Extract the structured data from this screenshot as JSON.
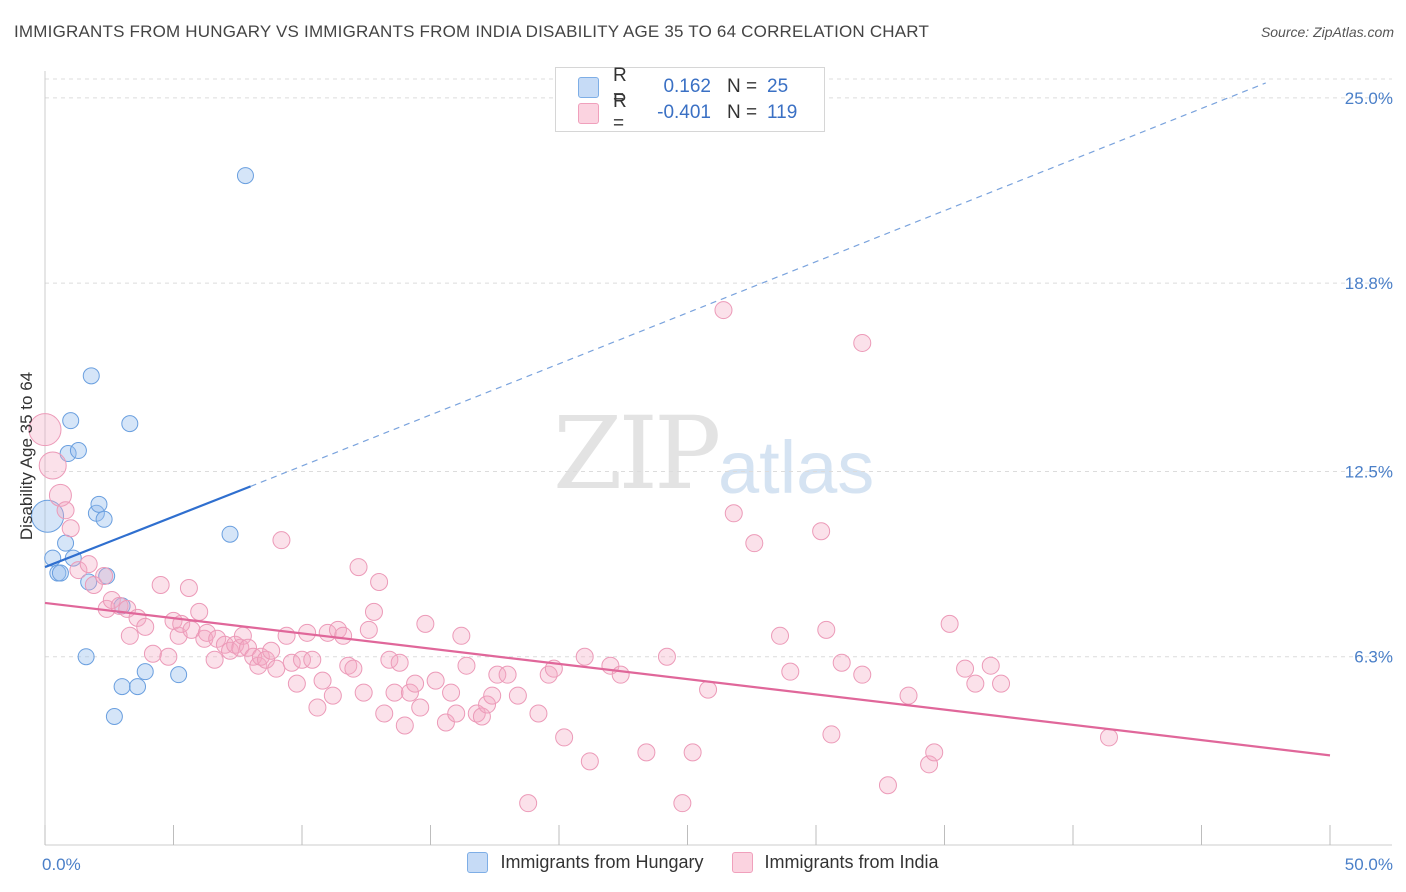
{
  "title": "IMMIGRANTS FROM HUNGARY VS IMMIGRANTS FROM INDIA DISABILITY AGE 35 TO 64 CORRELATION CHART",
  "source": "Source: ZipAtlas.com",
  "watermark": {
    "zip": "ZIP",
    "atlas": "atlas"
  },
  "legend": {
    "rows": [
      {
        "r_label": "R =",
        "r_value": "0.162",
        "n_label": "N =",
        "n_value": "25"
      },
      {
        "r_label": "R =",
        "r_value": "-0.401",
        "n_label": "N =",
        "n_value": "119"
      }
    ]
  },
  "bottom_legend": [
    "Immigrants from Hungary",
    "Immigrants from India"
  ],
  "chart_data": {
    "type": "scatter",
    "title": "IMMIGRANTS FROM HUNGARY VS IMMIGRANTS FROM INDIA DISABILITY AGE 35 TO 64 CORRELATION CHART",
    "xlabel": "",
    "ylabel": "Disability Age 35 to 64",
    "xlim": [
      0,
      50
    ],
    "ylim": [
      0,
      25.9
    ],
    "x_tick_labels": [
      "0.0%",
      "50.0%"
    ],
    "y_ticks": [
      6.3,
      12.5,
      18.8,
      25.0
    ],
    "y_tick_labels": [
      "6.3%",
      "12.5%",
      "18.8%",
      "25.0%"
    ],
    "colors": {
      "hungary": "#7eaee6",
      "india": "#f0a0bc",
      "hungary_line": "#2f6fcf",
      "india_line": "#e0679a"
    },
    "series": [
      {
        "name": "Immigrants from Hungary",
        "points": [
          [
            0.1,
            11.0
          ],
          [
            0.3,
            9.6
          ],
          [
            0.5,
            9.1
          ],
          [
            0.6,
            9.1
          ],
          [
            0.8,
            10.1
          ],
          [
            0.9,
            13.1
          ],
          [
            1.0,
            14.2
          ],
          [
            1.1,
            9.6
          ],
          [
            1.3,
            13.2
          ],
          [
            1.6,
            6.3
          ],
          [
            1.7,
            8.8
          ],
          [
            1.8,
            15.7
          ],
          [
            2.0,
            11.1
          ],
          [
            2.1,
            11.4
          ],
          [
            2.3,
            10.9
          ],
          [
            2.4,
            9.0
          ],
          [
            2.7,
            4.3
          ],
          [
            3.0,
            5.3
          ],
          [
            3.3,
            14.1
          ],
          [
            3.6,
            5.3
          ],
          [
            3.9,
            5.8
          ],
          [
            5.2,
            5.7
          ],
          [
            7.2,
            10.4
          ],
          [
            7.8,
            22.4
          ],
          [
            3.0,
            8.0
          ]
        ],
        "trendline": {
          "x": [
            0,
            8
          ],
          "y": [
            9.3,
            12.0
          ],
          "dashed_to": [
            47.5,
            25.5
          ]
        }
      },
      {
        "name": "Immigrants from India",
        "points": [
          [
            0.0,
            13.9
          ],
          [
            0.3,
            12.7
          ],
          [
            0.6,
            11.7
          ],
          [
            0.8,
            11.2
          ],
          [
            1.0,
            10.6
          ],
          [
            1.3,
            9.2
          ],
          [
            1.7,
            9.4
          ],
          [
            1.9,
            8.7
          ],
          [
            2.3,
            9.0
          ],
          [
            2.4,
            7.9
          ],
          [
            2.6,
            8.2
          ],
          [
            2.9,
            8.0
          ],
          [
            3.2,
            7.9
          ],
          [
            3.3,
            7.0
          ],
          [
            3.6,
            7.6
          ],
          [
            3.9,
            7.3
          ],
          [
            4.2,
            6.4
          ],
          [
            4.5,
            8.7
          ],
          [
            4.8,
            6.3
          ],
          [
            5.0,
            7.5
          ],
          [
            5.2,
            7.0
          ],
          [
            5.3,
            7.4
          ],
          [
            5.6,
            8.6
          ],
          [
            5.7,
            7.2
          ],
          [
            6.0,
            7.8
          ],
          [
            6.2,
            6.9
          ],
          [
            6.3,
            7.1
          ],
          [
            6.6,
            6.2
          ],
          [
            6.7,
            6.9
          ],
          [
            7.0,
            6.7
          ],
          [
            7.2,
            6.5
          ],
          [
            7.4,
            6.7
          ],
          [
            7.6,
            6.6
          ],
          [
            7.7,
            7.0
          ],
          [
            7.9,
            6.6
          ],
          [
            8.1,
            6.3
          ],
          [
            8.3,
            6.0
          ],
          [
            8.4,
            6.3
          ],
          [
            8.6,
            6.2
          ],
          [
            8.8,
            6.5
          ],
          [
            9.0,
            5.9
          ],
          [
            9.2,
            10.2
          ],
          [
            9.4,
            7.0
          ],
          [
            9.6,
            6.1
          ],
          [
            9.8,
            5.4
          ],
          [
            10.0,
            6.2
          ],
          [
            10.2,
            7.1
          ],
          [
            10.4,
            6.2
          ],
          [
            10.6,
            4.6
          ],
          [
            10.8,
            5.5
          ],
          [
            11.0,
            7.1
          ],
          [
            11.2,
            5.0
          ],
          [
            11.4,
            7.2
          ],
          [
            11.6,
            7.0
          ],
          [
            11.8,
            6.0
          ],
          [
            12.0,
            5.9
          ],
          [
            12.2,
            9.3
          ],
          [
            12.4,
            5.1
          ],
          [
            12.6,
            7.2
          ],
          [
            12.8,
            7.8
          ],
          [
            13.0,
            8.8
          ],
          [
            13.2,
            4.4
          ],
          [
            13.4,
            6.2
          ],
          [
            13.6,
            5.1
          ],
          [
            13.8,
            6.1
          ],
          [
            14.0,
            4.0
          ],
          [
            14.2,
            5.1
          ],
          [
            14.4,
            5.4
          ],
          [
            14.6,
            4.6
          ],
          [
            14.8,
            7.4
          ],
          [
            15.2,
            5.5
          ],
          [
            15.6,
            4.1
          ],
          [
            15.8,
            5.1
          ],
          [
            16.0,
            4.4
          ],
          [
            16.2,
            7.0
          ],
          [
            16.4,
            6.0
          ],
          [
            16.8,
            4.4
          ],
          [
            17.0,
            4.3
          ],
          [
            17.2,
            4.7
          ],
          [
            17.4,
            5.0
          ],
          [
            17.6,
            5.7
          ],
          [
            18.0,
            5.7
          ],
          [
            18.4,
            5.0
          ],
          [
            18.8,
            1.4
          ],
          [
            19.2,
            4.4
          ],
          [
            19.6,
            5.7
          ],
          [
            19.8,
            5.9
          ],
          [
            20.2,
            3.6
          ],
          [
            21.0,
            6.3
          ],
          [
            21.2,
            2.8
          ],
          [
            22.0,
            6.0
          ],
          [
            22.4,
            5.7
          ],
          [
            23.4,
            3.1
          ],
          [
            24.2,
            6.3
          ],
          [
            24.8,
            1.4
          ],
          [
            25.2,
            3.1
          ],
          [
            25.8,
            5.2
          ],
          [
            26.4,
            17.9
          ],
          [
            26.8,
            11.1
          ],
          [
            27.6,
            10.1
          ],
          [
            28.6,
            7.0
          ],
          [
            29.0,
            5.8
          ],
          [
            30.2,
            10.5
          ],
          [
            30.4,
            7.2
          ],
          [
            30.6,
            3.7
          ],
          [
            31.0,
            6.1
          ],
          [
            31.8,
            16.8
          ],
          [
            31.8,
            5.7
          ],
          [
            32.8,
            2.0
          ],
          [
            33.6,
            5.0
          ],
          [
            34.4,
            2.7
          ],
          [
            34.6,
            3.1
          ],
          [
            35.2,
            7.4
          ],
          [
            35.8,
            5.9
          ],
          [
            36.2,
            5.4
          ],
          [
            36.8,
            6.0
          ],
          [
            37.2,
            5.4
          ],
          [
            41.4,
            3.6
          ]
        ],
        "trendline": {
          "x": [
            0,
            50
          ],
          "y": [
            8.1,
            3.0
          ]
        }
      }
    ]
  }
}
